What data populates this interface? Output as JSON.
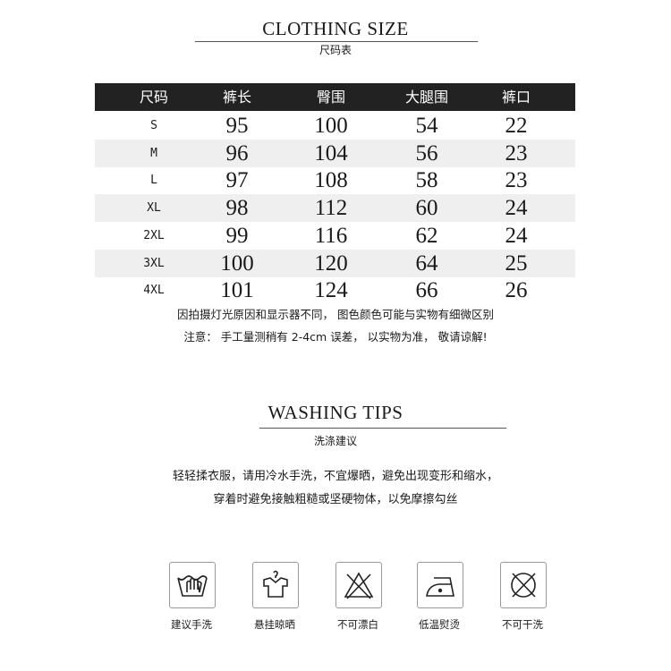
{
  "size_section": {
    "title": "CLOTHING  SIZE",
    "subtitle": "尺码表",
    "headers": [
      "尺码",
      "裤长",
      "臀围",
      "大腿围",
      "裤口"
    ],
    "rows": [
      [
        "S",
        "95",
        "100",
        "54",
        "22"
      ],
      [
        "M",
        "96",
        "104",
        "56",
        "23"
      ],
      [
        "L",
        "97",
        "108",
        "58",
        "23"
      ],
      [
        "XL",
        "98",
        "112",
        "60",
        "24"
      ],
      [
        "2XL",
        "99",
        "116",
        "62",
        "24"
      ],
      [
        "3XL",
        "100",
        "120",
        "64",
        "25"
      ],
      [
        "4XL",
        "101",
        "124",
        "66",
        "26"
      ]
    ],
    "notes": [
      "因拍摄灯光原因和显示器不同，  图色颜色可能与实物有细微区别",
      "注意：  手工量测稍有 2-4cm 误差，  以实物为准，  敬请谅解!"
    ]
  },
  "washing_section": {
    "title": "WASHING  TIPS",
    "subtitle": "洗涤建议",
    "lines": [
      "轻轻揉衣服，请用冷水手洗，不宜爆晒，避免出现变形和缩水，",
      "穿着时避免接触粗糙或坚硬物体，以免摩擦勾丝"
    ],
    "icons": [
      {
        "icon": "hand-wash-icon",
        "label": "建议手洗"
      },
      {
        "icon": "hang-dry-icon",
        "label": "悬挂晾晒"
      },
      {
        "icon": "no-bleach-icon",
        "label": "不可漂白"
      },
      {
        "icon": "low-iron-icon",
        "label": "低温熨烫"
      },
      {
        "icon": "no-dry-clean-icon",
        "label": "不可干洗"
      }
    ]
  },
  "colors": {
    "header_bg": "#222222",
    "stripe": "#efefef"
  }
}
